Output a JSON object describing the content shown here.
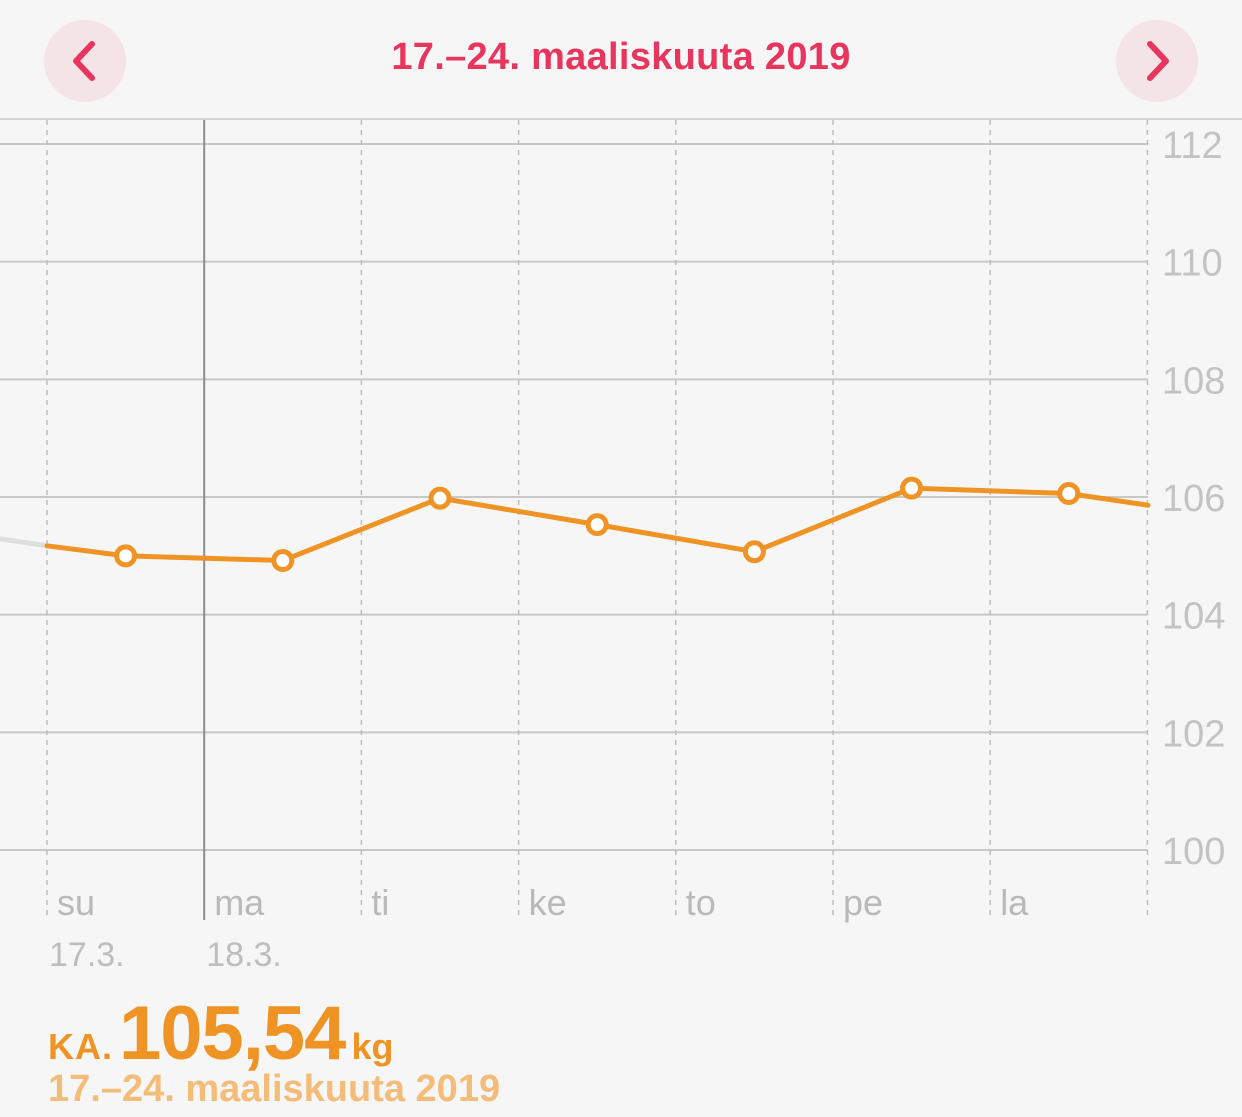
{
  "header": {
    "title": "17.–24. maaliskuuta 2019",
    "prev_icon": "chevron-left-icon",
    "next_icon": "chevron-right-icon",
    "accent_color": "#e8355d"
  },
  "chart_data": {
    "type": "line",
    "title": "",
    "xlabel": "",
    "ylabel": "",
    "ylim": [
      100,
      112
    ],
    "y_ticks": [
      "112",
      "110",
      "108",
      "106",
      "104",
      "102",
      "100"
    ],
    "grid": true,
    "y_axis_side": "right",
    "days": [
      "su",
      "ma",
      "ti",
      "ke",
      "to",
      "pe",
      "la"
    ],
    "date_labels": [
      "17.3.",
      "18.3."
    ],
    "series": [
      {
        "color": "#ef9424",
        "points": [
          {
            "day": 0.5,
            "value": 105.0
          },
          {
            "day": 1.5,
            "value": 104.92
          },
          {
            "day": 2.5,
            "value": 105.98
          },
          {
            "day": 3.5,
            "value": 105.53
          },
          {
            "day": 4.5,
            "value": 105.07
          },
          {
            "day": 5.5,
            "value": 106.15
          },
          {
            "day": 6.5,
            "value": 106.06
          }
        ],
        "start_value": 105.17,
        "end_value": 105.86
      }
    ],
    "previous_period_line": {
      "color": "#dedede"
    }
  },
  "summary": {
    "prefix": "KA.",
    "value": "105,54",
    "unit": "kg",
    "range": "17.–24. maaliskuuta 2019",
    "value_color": "#ef9424"
  }
}
